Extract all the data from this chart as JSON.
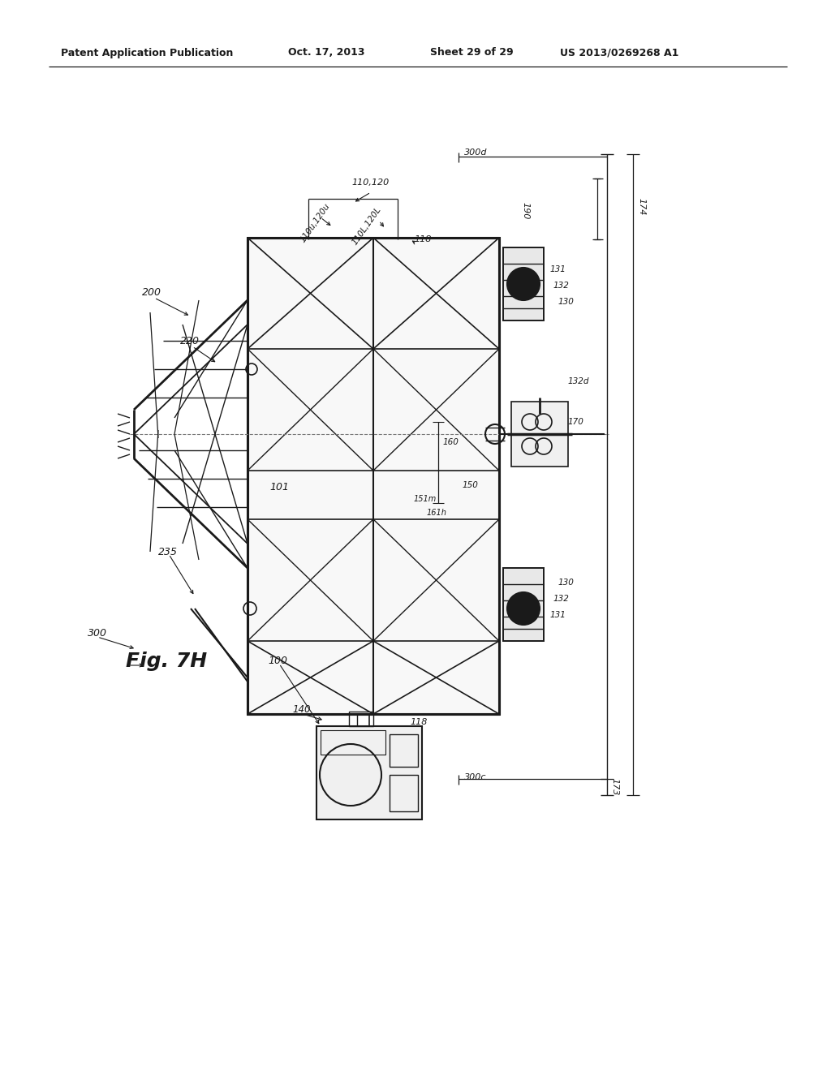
{
  "bg_color": "#ffffff",
  "line_color": "#1a1a1a",
  "header_text": "Patent Application Publication",
  "header_date": "Oct. 17, 2013",
  "header_sheet": "Sheet 29 of 29",
  "header_patent": "US 2013/0269268 A1",
  "fig_label": "Fig. 7H"
}
